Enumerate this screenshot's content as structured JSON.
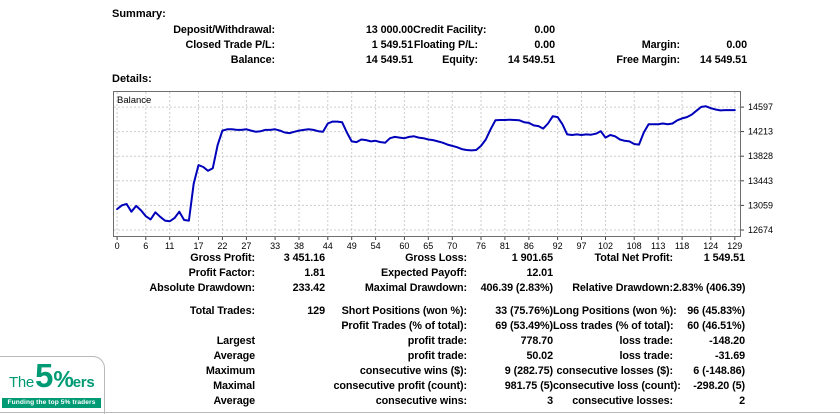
{
  "summary": {
    "title": "Summary:",
    "rows": [
      [
        "Deposit/Withdrawal:",
        "13 000.00",
        "Credit Facility:",
        "0.00",
        "",
        ""
      ],
      [
        "Closed Trade P/L:",
        "1 549.51",
        "Floating P/L:",
        "0.00",
        "Margin:",
        "0.00"
      ],
      [
        "Balance:",
        "14 549.51",
        "Equity:",
        "14 549.51",
        "Free Margin:",
        "14 549.51"
      ]
    ]
  },
  "details": {
    "title": "Details:",
    "group1": [
      [
        "Gross Profit:",
        "3 451.16",
        "Gross Loss:",
        "1 901.65",
        "Total Net Profit:",
        "1 549.51"
      ],
      [
        "Profit Factor:",
        "1.81",
        "Expected Payoff:",
        "12.01",
        "",
        ""
      ],
      [
        "Absolute Drawdown:",
        "233.42",
        "Maximal Drawdown:",
        "406.39 (2.83%)",
        "Relative Drawdown:",
        "2.83% (406.39)"
      ]
    ],
    "group2": [
      [
        "Total Trades:",
        "129",
        "Short Positions (won %):",
        "33 (75.76%)",
        "Long Positions (won %):",
        "96 (45.83%)"
      ],
      [
        "",
        "",
        "Profit Trades (% of total):",
        "69 (53.49%)",
        "Loss trades (% of total):",
        "60 (46.51%)"
      ],
      [
        "Largest",
        "",
        "profit trade:",
        "778.70",
        "loss trade:",
        "-148.20"
      ],
      [
        "Average",
        "",
        "profit trade:",
        "50.02",
        "loss trade:",
        "-31.69"
      ],
      [
        "Maximum",
        "",
        "consecutive wins ($):",
        "9 (282.75)",
        "consecutive losses ($):",
        "6 (-148.86)"
      ],
      [
        "Maximal",
        "",
        "consecutive profit (count):",
        "981.75 (5)",
        "consecutive loss (count):",
        "-298.20 (5)"
      ],
      [
        "Average",
        "",
        "consecutive wins:",
        "3",
        "consecutive losses:",
        "2"
      ]
    ]
  },
  "chart_data": {
    "type": "line",
    "title": "Balance",
    "legend_label": "Balance",
    "x_ticks": [
      0,
      6,
      11,
      17,
      22,
      27,
      33,
      38,
      44,
      49,
      54,
      60,
      65,
      70,
      76,
      81,
      86,
      92,
      97,
      102,
      108,
      113,
      118,
      124,
      129
    ],
    "y_ticks": [
      14597,
      14213,
      13828,
      13443,
      13059,
      12674
    ],
    "xlim": [
      -0.85,
      130.3
    ],
    "ylim": [
      12564,
      14849
    ],
    "grid": true,
    "line_color": "#0000BB",
    "grid_color": "#cdcdcd",
    "border_color": "#6e6e6e",
    "series": [
      {
        "name": "Balance",
        "values": [
          13000,
          13060,
          13080,
          12960,
          13050,
          12980,
          12890,
          12840,
          12950,
          12880,
          12820,
          12810,
          12860,
          12960,
          12830,
          12820,
          13400,
          13690,
          13660,
          13600,
          13640,
          14000,
          14230,
          14250,
          14250,
          14240,
          14240,
          14250,
          14230,
          14210,
          14220,
          14240,
          14240,
          14250,
          14230,
          14200,
          14190,
          14210,
          14230,
          14240,
          14250,
          14240,
          14220,
          14210,
          14340,
          14370,
          14370,
          14360,
          14200,
          14060,
          14050,
          14090,
          14080,
          14060,
          14070,
          14050,
          14040,
          14110,
          14130,
          14120,
          14110,
          14130,
          14140,
          14120,
          14110,
          14090,
          14080,
          14060,
          14040,
          14010,
          13990,
          13970,
          13940,
          13925,
          13920,
          13925,
          13990,
          14090,
          14250,
          14390,
          14395,
          14395,
          14400,
          14395,
          14390,
          14360,
          14350,
          14310,
          14300,
          14260,
          14340,
          14455,
          14440,
          14330,
          14170,
          14160,
          14170,
          14160,
          14170,
          14165,
          14180,
          14220,
          14120,
          14160,
          14140,
          14090,
          14070,
          14060,
          14020,
          14010,
          14200,
          14330,
          14330,
          14330,
          14340,
          14330,
          14340,
          14390,
          14420,
          14440,
          14480,
          14540,
          14600,
          14610,
          14580,
          14560,
          14545,
          14550,
          14550,
          14550
        ]
      }
    ]
  },
  "logo": {
    "brand_the": "The",
    "brand_5": "5",
    "brand_percent": "%",
    "brand_ers": "ers",
    "tagline": "Funding the top 5% traders",
    "brand_color": "#009A74"
  }
}
